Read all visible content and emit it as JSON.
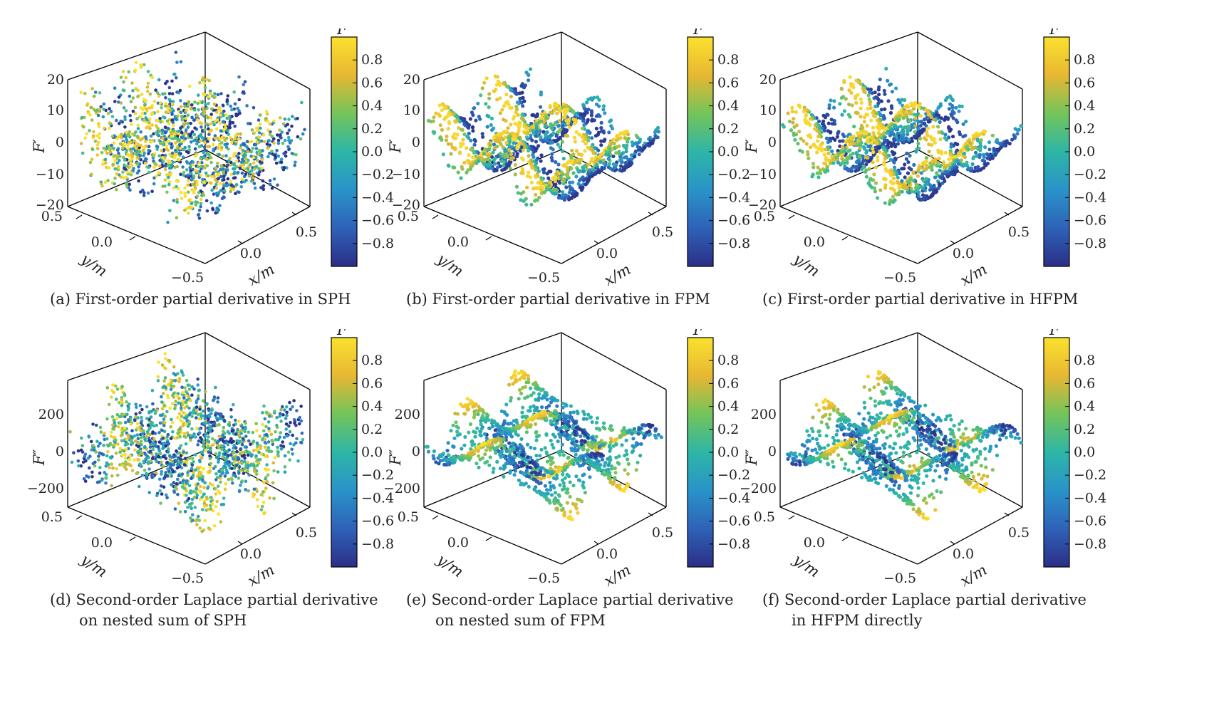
{
  "colormap": [
    "#440154",
    "#3b518b",
    "#2c718e",
    "#21908d",
    "#27ad81",
    "#5cc863",
    "#aadc32",
    "#fde725"
  ],
  "colorbar_scheme": [
    "#2b2f86",
    "#2e62b8",
    "#2a93c9",
    "#2db6a6",
    "#74c45a",
    "#e7b732",
    "#fbe12e"
  ],
  "chart_data": [
    {
      "type": "scatter3d",
      "panel_label": "(a)",
      "caption_lines": [
        "(a) First-order partial derivative in SPH"
      ],
      "zlabel": "F′",
      "xlabel": "x/m",
      "ylabel": "y/m",
      "z_ticks": [
        "20",
        "10",
        "0",
        "−10",
        "−20"
      ],
      "zlim": [
        -20,
        20
      ],
      "x_ticks": [
        "0.0",
        "0.5"
      ],
      "y_ticks": [
        "0.5",
        "0.0",
        "−0.5"
      ],
      "colorbar_label": "F",
      "colorbar_ticks": [
        "0.8",
        "0.6",
        "0.4",
        "0.2",
        "0.0",
        "−0.2",
        "−0.4",
        "−0.6",
        "−0.8"
      ],
      "clim": [
        -1,
        1
      ],
      "surface": "first-order",
      "noise": 1.0
    },
    {
      "type": "scatter3d",
      "panel_label": "(b)",
      "caption_lines": [
        "(b) First-order partial derivative in FPM"
      ],
      "zlabel": "F′",
      "xlabel": "x/m",
      "ylabel": "y/m",
      "z_ticks": [
        "20",
        "10",
        "0",
        "−10",
        "−20"
      ],
      "zlim": [
        -20,
        20
      ],
      "x_ticks": [
        "0.0",
        "0.5"
      ],
      "y_ticks": [
        "0.5",
        "0.0",
        "−0.5"
      ],
      "colorbar_label": "F",
      "colorbar_ticks": [
        "0.8",
        "0.6",
        "0.4",
        "0.2",
        "0.0",
        "−0.2",
        "−0.4",
        "−0.6",
        "−0.8"
      ],
      "clim": [
        -1,
        1
      ],
      "surface": "first-order",
      "noise": 0.0
    },
    {
      "type": "scatter3d",
      "panel_label": "(c)",
      "caption_lines": [
        "(c) First-order partial derivative in HFPM"
      ],
      "zlabel": "F′",
      "xlabel": "x/m",
      "ylabel": "y/m",
      "z_ticks": [
        "20",
        "10",
        "0",
        "−10",
        "−20"
      ],
      "zlim": [
        -20,
        20
      ],
      "x_ticks": [
        "0.0",
        "0.5"
      ],
      "y_ticks": [
        "0.5",
        "0.0",
        "−0.5"
      ],
      "colorbar_label": "F",
      "colorbar_ticks": [
        "0.8",
        "0.6",
        "0.4",
        "0.2",
        "0.0",
        "−0.2",
        "−0.4",
        "−0.6",
        "−0.8"
      ],
      "clim": [
        -1,
        1
      ],
      "surface": "first-order",
      "noise": 0.0
    },
    {
      "type": "scatter3d",
      "panel_label": "(d)",
      "caption_lines": [
        "(d) Second-order Laplace partial derivative",
        "on nested sum of SPH"
      ],
      "zlabel": "F″",
      "xlabel": "x/m",
      "ylabel": "y/m",
      "z_ticks": [
        "200",
        "0",
        "−200"
      ],
      "zlim": [
        -300,
        300
      ],
      "x_ticks": [
        "0.0",
        "0.5"
      ],
      "y_ticks": [
        "0.5",
        "0.0",
        "−0.5"
      ],
      "colorbar_label": "F",
      "colorbar_ticks": [
        "0.8",
        "0.6",
        "0.4",
        "0.2",
        "0.0",
        "−0.2",
        "−0.4",
        "−0.6",
        "−0.8"
      ],
      "clim": [
        -1,
        1
      ],
      "surface": "second-order",
      "noise": 1.0
    },
    {
      "type": "scatter3d",
      "panel_label": "(e)",
      "caption_lines": [
        "(e) Second-order Laplace partial derivative",
        "on nested sum of FPM"
      ],
      "zlabel": "F″",
      "xlabel": "x/m",
      "ylabel": "y/m",
      "z_ticks": [
        "200",
        "0",
        "−200"
      ],
      "zlim": [
        -300,
        300
      ],
      "x_ticks": [
        "0.0",
        "0.5"
      ],
      "y_ticks": [
        "0.5",
        "0.0",
        "−0.5"
      ],
      "colorbar_label": "F",
      "colorbar_ticks": [
        "0.8",
        "0.6",
        "0.4",
        "0.2",
        "0.0",
        "−0.2",
        "−0.4",
        "−0.6",
        "−0.8"
      ],
      "clim": [
        -1,
        1
      ],
      "surface": "second-order",
      "noise": 0.0
    },
    {
      "type": "scatter3d",
      "panel_label": "(f)",
      "caption_lines": [
        "(f) Second-order Laplace partial derivative",
        "in HFPM directly"
      ],
      "zlabel": "F″",
      "xlabel": "x/m",
      "ylabel": "y/m",
      "z_ticks": [
        "200",
        "0",
        "−200"
      ],
      "zlim": [
        -300,
        300
      ],
      "x_ticks": [
        "0.0",
        "0.5"
      ],
      "y_ticks": [
        "0.5",
        "0.0",
        "−0.5"
      ],
      "colorbar_label": "F",
      "colorbar_ticks": [
        "0.8",
        "0.6",
        "0.4",
        "0.2",
        "0.0",
        "−0.2",
        "−0.4",
        "−0.6",
        "−0.8"
      ],
      "clim": [
        -1,
        1
      ],
      "surface": "second-order",
      "noise": 0.0
    }
  ]
}
